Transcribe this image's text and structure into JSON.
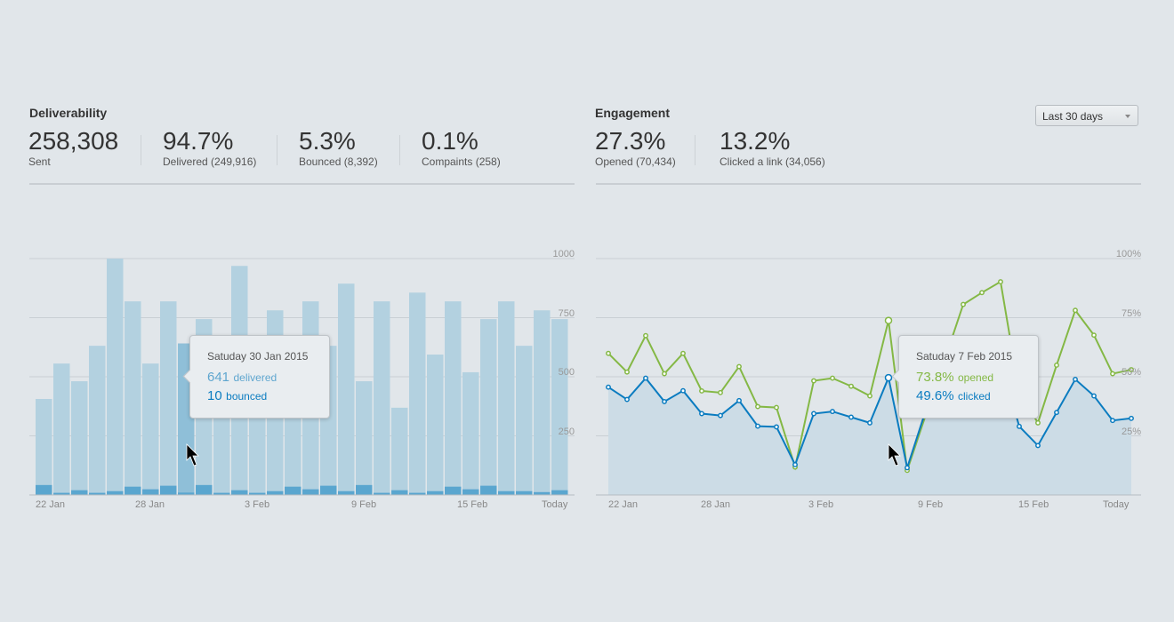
{
  "colors": {
    "background": "#e1e6ea",
    "delivered_bar": "#b3d1e0",
    "delivered_bar_highlight": "#8fbfd8",
    "bounced_bar": "#5aa6cf",
    "opened_line": "#84b845",
    "clicked_line": "#0b7cc0",
    "clicked_area": "#ccdce6",
    "delivered_text": "#5fa6cf",
    "bounced_text": "#0b7cc0"
  },
  "deliverability": {
    "title": "Deliverability",
    "stats": [
      {
        "value": "258,308",
        "label": "Sent"
      },
      {
        "value": "94.7%",
        "label": "Delivered (249,916)"
      },
      {
        "value": "5.3%",
        "label": "Bounced (8,392)"
      },
      {
        "value": "0.1%",
        "label": "Compaints (258)"
      }
    ],
    "tooltip": {
      "date": "Satuday 30 Jan 2015",
      "delivered_value": "641",
      "delivered_label": "delivered",
      "bounced_value": "10",
      "bounced_label": "bounced"
    }
  },
  "engagement": {
    "title": "Engagement",
    "range_select": {
      "selected": "Last 30 days",
      "icon": "caret-down-icon"
    },
    "stats": [
      {
        "value": "27.3%",
        "label": "Opened (70,434)"
      },
      {
        "value": "13.2%",
        "label": "Clicked a link (34,056)"
      }
    ],
    "tooltip": {
      "date": "Satuday 7 Feb 2015",
      "opened_value": "73.8%",
      "opened_label": "opened",
      "clicked_value": "49.6%",
      "clicked_label": "clicked"
    }
  },
  "chart_data": [
    {
      "type": "bar",
      "stacked": false,
      "x_tick_labels": [
        "22 Jan",
        "28 Jan",
        "3 Feb",
        "9 Feb",
        "15 Feb",
        "Today"
      ],
      "y_tick_labels": [
        "1000",
        "750",
        "500",
        "250"
      ],
      "ylim": [
        0,
        1000
      ],
      "grid": true,
      "highlight_index": 8,
      "series": [
        {
          "name": "delivered",
          "values": [
            406,
            556,
            481,
            631,
            1000,
            819,
            556,
            819,
            641,
            744,
            580,
            969,
            600,
            781,
            600,
            819,
            631,
            894,
            481,
            819,
            369,
            856,
            594,
            819,
            519,
            744,
            819,
            631,
            781,
            744
          ]
        },
        {
          "name": "bounced",
          "values": [
            42,
            9,
            20,
            9,
            16,
            35,
            24,
            39,
            10,
            42,
            9,
            20,
            9,
            16,
            35,
            24,
            39,
            16,
            42,
            9,
            20,
            9,
            16,
            35,
            24,
            39,
            16,
            16,
            12,
            20
          ]
        }
      ]
    },
    {
      "type": "line",
      "x_tick_labels": [
        "22 Jan",
        "28 Jan",
        "3 Feb",
        "9 Feb",
        "15 Feb",
        "Today"
      ],
      "y_tick_labels": [
        "100%",
        "75%",
        "50%",
        "25%"
      ],
      "ylim": [
        0,
        100
      ],
      "grid": true,
      "highlight_index": 15,
      "series": [
        {
          "name": "opened",
          "values": [
            59.9,
            52,
            67.4,
            51.3,
            59.9,
            44,
            43.3,
            54.3,
            37.4,
            37,
            11.8,
            48.3,
            49.4,
            46,
            41.9,
            73.8,
            10.4,
            34,
            57,
            80.6,
            85.6,
            90.2,
            43.5,
            30.5,
            54.9,
            78.1,
            67.6,
            51.3,
            53
          ]
        },
        {
          "name": "clicked",
          "values": [
            45.6,
            40.4,
            49.4,
            39.5,
            44.1,
            34.4,
            33.6,
            39.9,
            29.1,
            28.8,
            12.8,
            34.4,
            35.3,
            32.9,
            30.5,
            49.6,
            11.5,
            35.9,
            33.6,
            52.1,
            54.9,
            56.8,
            29,
            20.9,
            34.9,
            48.9,
            41.9,
            31.5,
            32.4
          ]
        }
      ]
    }
  ]
}
